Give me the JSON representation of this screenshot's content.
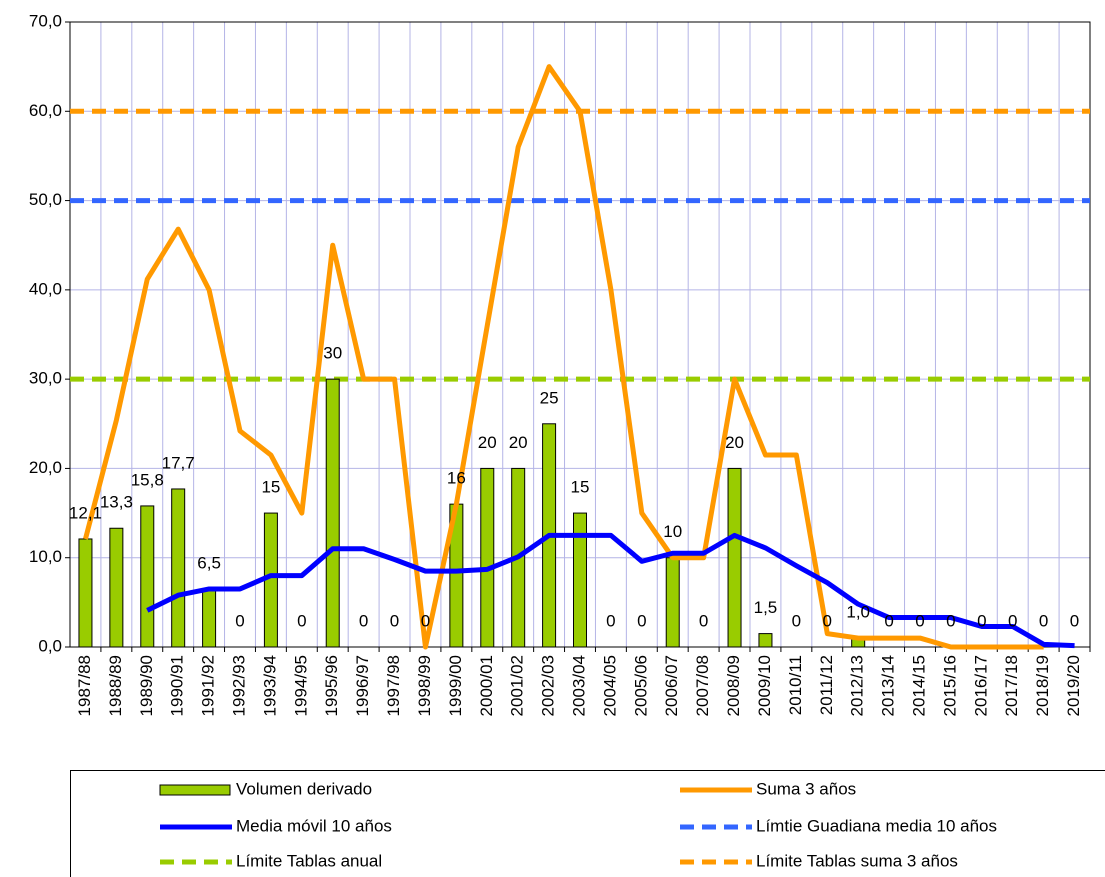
{
  "chart_data": {
    "type": "bar-line",
    "categories": [
      "1987/88",
      "1988/89",
      "1989/90",
      "1990/91",
      "1991/92",
      "1992/93",
      "1993/94",
      "1994/95",
      "1995/96",
      "1996/97",
      "1997/98",
      "1998/99",
      "1999/00",
      "2000/01",
      "2001/02",
      "2002/03",
      "2003/04",
      "2004/05",
      "2005/06",
      "2006/07",
      "2007/08",
      "2008/09",
      "2009/10",
      "2010/11",
      "2011/12",
      "2012/13",
      "2013/14",
      "2014/15",
      "2015/16",
      "2016/17",
      "2017/18",
      "2018/19",
      "2019/20"
    ],
    "series": [
      {
        "name": "Volumen derivado",
        "kind": "bar",
        "color": "#99cc00",
        "values": [
          12.1,
          13.3,
          15.8,
          17.7,
          6.5,
          0,
          15,
          0,
          30,
          0,
          0,
          0,
          16,
          20,
          20,
          25,
          15,
          0,
          0,
          10,
          0,
          20,
          1.5,
          0,
          0,
          1.0,
          0,
          0,
          0,
          0,
          0,
          0,
          0
        ],
        "value_labels": [
          "12,1",
          "13,3",
          "15,8",
          "17,7",
          "6,5",
          "0",
          "15",
          "0",
          "30",
          "0",
          "0",
          "0",
          "16",
          "20",
          "20",
          "25",
          "15",
          "0",
          "0",
          "10",
          "0",
          "20",
          "1,5",
          "0",
          "0",
          "1,0",
          "0",
          "0",
          "0",
          "0",
          "0",
          "0",
          "0"
        ]
      },
      {
        "name": "Suma 3 años",
        "kind": "line",
        "color": "#ff9900",
        "values": [
          12.1,
          25.4,
          41.2,
          46.8,
          40,
          24.2,
          21.5,
          15,
          45,
          30,
          30,
          0,
          16,
          36,
          56,
          65,
          60,
          40,
          15,
          10,
          10,
          30,
          21.5,
          21.5,
          1.5,
          1.0,
          1.0,
          1.0,
          0,
          0,
          0,
          0,
          null
        ]
      },
      {
        "name": "Media móvil 10 años",
        "kind": "line",
        "color": "#0000ff",
        "values": [
          null,
          null,
          4.1,
          5.8,
          6.5,
          6.5,
          8.0,
          8.0,
          11.0,
          11.0,
          9.8,
          8.5,
          8.5,
          8.7,
          10.1,
          12.5,
          12.5,
          12.5,
          9.6,
          10.5,
          10.5,
          12.5,
          11.1,
          9.1,
          7.2,
          4.8,
          3.3,
          3.3,
          3.3,
          2.3,
          2.3,
          0.3,
          0.15
        ]
      },
      {
        "name": "Límtie Guadiana media 10 años",
        "kind": "hline",
        "color": "#3366ff",
        "value": 50
      },
      {
        "name": "Límite Tablas anual",
        "kind": "hline",
        "color": "#99cc00",
        "value": 30
      },
      {
        "name": "Límite Tablas suma 3 años",
        "kind": "hline",
        "color": "#ff9900",
        "value": 60
      }
    ],
    "ylim": [
      0,
      70
    ],
    "yticks": [
      {
        "value": 0,
        "label": "0,0"
      },
      {
        "value": 10,
        "label": "10,0"
      },
      {
        "value": 20,
        "label": "20,0"
      },
      {
        "value": 30,
        "label": "30,0"
      },
      {
        "value": 40,
        "label": "40,0"
      },
      {
        "value": 50,
        "label": "50,0"
      },
      {
        "value": 60,
        "label": "60,0"
      },
      {
        "value": 70,
        "label": "70,0"
      }
    ],
    "grid": true
  }
}
